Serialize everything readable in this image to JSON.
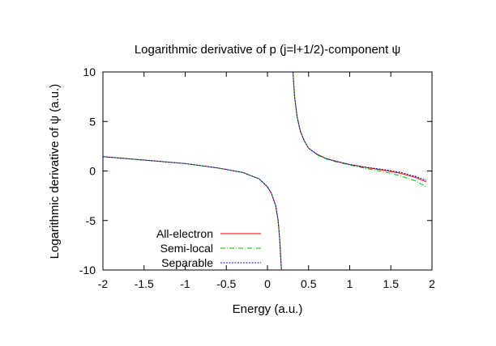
{
  "chart_data": {
    "type": "line",
    "title": "Logarithmic derivative of p (j=l+1/2)-component ψ",
    "xlabel": "Energy (a.u.)",
    "ylabel": "Logarithmic derivative of ψ (a.u.)",
    "xlim": [
      -2,
      2
    ],
    "ylim": [
      -10,
      10
    ],
    "x_ticks": [
      -2,
      -1.5,
      -1,
      -0.5,
      0,
      0.5,
      1,
      1.5,
      2
    ],
    "y_ticks": [
      -10,
      -5,
      0,
      5,
      10
    ],
    "x_tick_labels": [
      "-2",
      "-1.5",
      "-1",
      "-0.5",
      "0",
      "0.5",
      "1",
      "1.5",
      "2"
    ],
    "y_tick_labels": [
      "-10",
      "-5",
      "0",
      "5",
      "10"
    ],
    "grid": false,
    "legend_position": "bottom-left",
    "series": [
      {
        "name": "All-electron",
        "color": "#ff0000",
        "style": "solid",
        "branches": [
          [
            [
              -2.0,
              1.45
            ],
            [
              -1.5,
              1.1
            ],
            [
              -1.0,
              0.75
            ],
            [
              -0.6,
              0.3
            ],
            [
              -0.3,
              -0.15
            ],
            [
              -0.1,
              -0.8
            ],
            [
              0.0,
              -1.6
            ],
            [
              0.05,
              -2.3
            ],
            [
              0.1,
              -3.5
            ],
            [
              0.13,
              -5.0
            ],
            [
              0.15,
              -7.0
            ],
            [
              0.16,
              -8.5
            ],
            [
              0.17,
              -10.0
            ]
          ],
          [
            [
              0.31,
              10.0
            ],
            [
              0.33,
              7.5
            ],
            [
              0.36,
              5.5
            ],
            [
              0.4,
              4.0
            ],
            [
              0.45,
              3.0
            ],
            [
              0.5,
              2.3
            ],
            [
              0.6,
              1.7
            ],
            [
              0.7,
              1.3
            ],
            [
              0.8,
              1.05
            ],
            [
              0.9,
              0.85
            ],
            [
              1.0,
              0.65
            ],
            [
              1.2,
              0.35
            ],
            [
              1.4,
              0.1
            ],
            [
              1.6,
              -0.2
            ],
            [
              1.8,
              -0.65
            ],
            [
              1.93,
              -1.1
            ]
          ]
        ]
      },
      {
        "name": "Semi-local",
        "color": "#00c000",
        "style": "dash-dot",
        "branches": [
          [
            [
              -2.0,
              1.45
            ],
            [
              -1.5,
              1.1
            ],
            [
              -1.0,
              0.75
            ],
            [
              -0.6,
              0.3
            ],
            [
              -0.3,
              -0.15
            ],
            [
              -0.1,
              -0.8
            ],
            [
              0.0,
              -1.6
            ],
            [
              0.05,
              -2.3
            ],
            [
              0.1,
              -3.5
            ],
            [
              0.13,
              -5.0
            ],
            [
              0.15,
              -7.0
            ],
            [
              0.16,
              -8.5
            ],
            [
              0.17,
              -10.0
            ]
          ],
          [
            [
              0.31,
              10.0
            ],
            [
              0.33,
              7.5
            ],
            [
              0.36,
              5.5
            ],
            [
              0.4,
              4.0
            ],
            [
              0.45,
              3.0
            ],
            [
              0.5,
              2.3
            ],
            [
              0.6,
              1.65
            ],
            [
              0.7,
              1.25
            ],
            [
              0.8,
              1.0
            ],
            [
              0.9,
              0.8
            ],
            [
              1.0,
              0.6
            ],
            [
              1.2,
              0.25
            ],
            [
              1.4,
              -0.05
            ],
            [
              1.6,
              -0.45
            ],
            [
              1.8,
              -1.0
            ],
            [
              1.93,
              -1.6
            ]
          ]
        ]
      },
      {
        "name": "Separable",
        "color": "#0000c0",
        "style": "dotted",
        "branches": [
          [
            [
              -2.0,
              1.45
            ],
            [
              -1.5,
              1.1
            ],
            [
              -1.0,
              0.75
            ],
            [
              -0.6,
              0.3
            ],
            [
              -0.3,
              -0.15
            ],
            [
              -0.1,
              -0.8
            ],
            [
              0.0,
              -1.6
            ],
            [
              0.05,
              -2.3
            ],
            [
              0.1,
              -3.5
            ],
            [
              0.13,
              -5.0
            ],
            [
              0.15,
              -7.0
            ],
            [
              0.16,
              -8.5
            ],
            [
              0.17,
              -10.0
            ]
          ],
          [
            [
              0.31,
              10.0
            ],
            [
              0.33,
              7.5
            ],
            [
              0.36,
              5.5
            ],
            [
              0.4,
              4.0
            ],
            [
              0.45,
              3.0
            ],
            [
              0.5,
              2.3
            ],
            [
              0.6,
              1.7
            ],
            [
              0.7,
              1.3
            ],
            [
              0.8,
              1.05
            ],
            [
              0.9,
              0.85
            ],
            [
              1.0,
              0.65
            ],
            [
              1.2,
              0.38
            ],
            [
              1.4,
              0.15
            ],
            [
              1.6,
              -0.1
            ],
            [
              1.8,
              -0.55
            ],
            [
              1.93,
              -0.95
            ]
          ]
        ]
      }
    ]
  }
}
